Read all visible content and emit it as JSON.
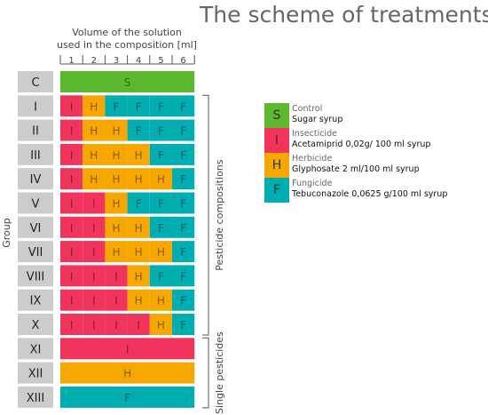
{
  "title": "The scheme of treatments",
  "volume_label_line1": "Volume of the solution",
  "volume_label_line2": "used in the composition [ml]",
  "volume_ticks": [
    "1",
    "2",
    "3",
    "4",
    "5",
    "6"
  ],
  "y_axis_label": "Group",
  "bracket_labels": {
    "pesticide": "Pesticide compositions",
    "single": "Single pesticides"
  },
  "colors": {
    "S": "#5cb82f",
    "I": "#f0345c",
    "H": "#f6a800",
    "F": "#00aeb2",
    "group_box": "#cccccc"
  },
  "legend": [
    {
      "code": "S",
      "category": "Control",
      "description": "Sugar syrup"
    },
    {
      "code": "I",
      "category": "Insecticide",
      "description": "Acetamiprid 0,02g/ 100 ml syrup"
    },
    {
      "code": "H",
      "category": "Herbicide",
      "description": "Glyphosate 2 ml/100 ml syrup"
    },
    {
      "code": "F",
      "category": "Fungicide",
      "description": "Tebuconazole 0,0625 g/100 ml syrup"
    }
  ],
  "groups": [
    {
      "label": "C",
      "cells": [
        "S"
      ]
    },
    {
      "label": "I",
      "cells": [
        "I",
        "H",
        "F",
        "F",
        "F",
        "F"
      ]
    },
    {
      "label": "II",
      "cells": [
        "I",
        "H",
        "H",
        "F",
        "F",
        "F"
      ]
    },
    {
      "label": "III",
      "cells": [
        "I",
        "H",
        "H",
        "H",
        "F",
        "F"
      ]
    },
    {
      "label": "IV",
      "cells": [
        "I",
        "H",
        "H",
        "H",
        "H",
        "F"
      ]
    },
    {
      "label": "V",
      "cells": [
        "I",
        "I",
        "H",
        "F",
        "F",
        "F"
      ]
    },
    {
      "label": "VI",
      "cells": [
        "I",
        "I",
        "H",
        "H",
        "F",
        "F"
      ]
    },
    {
      "label": "VII",
      "cells": [
        "I",
        "I",
        "H",
        "H",
        "H",
        "F"
      ]
    },
    {
      "label": "VIII",
      "cells": [
        "I",
        "I",
        "I",
        "H",
        "F",
        "F"
      ]
    },
    {
      "label": "IX",
      "cells": [
        "I",
        "I",
        "I",
        "H",
        "H",
        "F"
      ]
    },
    {
      "label": "X",
      "cells": [
        "I",
        "I",
        "I",
        "I",
        "H",
        "F"
      ]
    },
    {
      "label": "XI",
      "cells": [
        "I"
      ]
    },
    {
      "label": "XII",
      "cells": [
        "H"
      ]
    },
    {
      "label": "XIII",
      "cells": [
        "F"
      ]
    }
  ]
}
